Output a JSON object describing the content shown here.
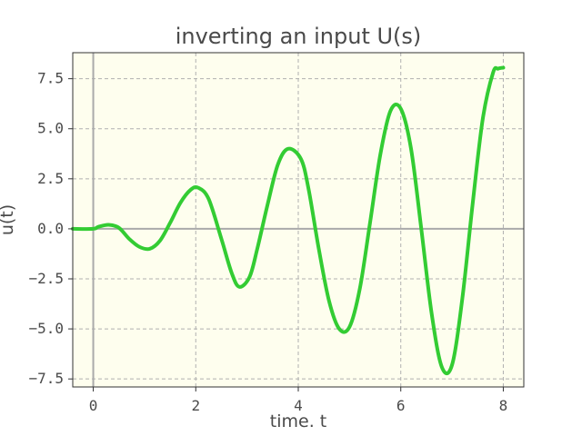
{
  "chart_data": {
    "type": "line",
    "title": "inverting an input U(s)",
    "xlabel": "time. t",
    "ylabel": "u(t)",
    "xlim": [
      -0.4,
      8.4
    ],
    "ylim": [
      -7.9,
      8.8
    ],
    "xticks": [
      0,
      2,
      4,
      6,
      8
    ],
    "xtick_labels": [
      "0",
      "2",
      "4",
      "6",
      "8"
    ],
    "yticks": [
      -7.5,
      -5.0,
      -2.5,
      0.0,
      2.5,
      5.0,
      7.5
    ],
    "ytick_labels": [
      "−7.5",
      "−5.0",
      "−2.5",
      "0.0",
      "2.5",
      "5.0",
      "7.5"
    ],
    "grid": true,
    "reference_lines": {
      "x": 0,
      "y": 0
    },
    "series": [
      {
        "color": "#33cc33",
        "x": [
          -0.4,
          0.0,
          0.1,
          0.3,
          0.5,
          0.7,
          0.9,
          1.1,
          1.3,
          1.5,
          1.7,
          1.9,
          2.05,
          2.25,
          2.5,
          2.7,
          2.85,
          3.05,
          3.2,
          3.4,
          3.6,
          3.8,
          4.05,
          4.2,
          4.4,
          4.6,
          4.8,
          5.0,
          5.2,
          5.4,
          5.6,
          5.8,
          6.0,
          6.2,
          6.4,
          6.6,
          6.8,
          7.0,
          7.2,
          7.4,
          7.6,
          7.8,
          7.9,
          8.0
        ],
        "y": [
          0.0,
          0.0,
          0.1,
          0.2,
          0.05,
          -0.5,
          -0.9,
          -1.0,
          -0.6,
          0.3,
          1.3,
          1.95,
          2.05,
          1.5,
          -0.5,
          -2.2,
          -2.9,
          -2.4,
          -1.0,
          1.2,
          3.2,
          4.0,
          3.5,
          2.0,
          -1.0,
          -3.6,
          -5.0,
          -4.9,
          -3.0,
          0.3,
          3.7,
          5.9,
          6.0,
          4.0,
          0.0,
          -4.2,
          -6.9,
          -6.8,
          -3.5,
          1.2,
          5.5,
          7.8,
          8.0,
          8.05
        ]
      }
    ]
  }
}
